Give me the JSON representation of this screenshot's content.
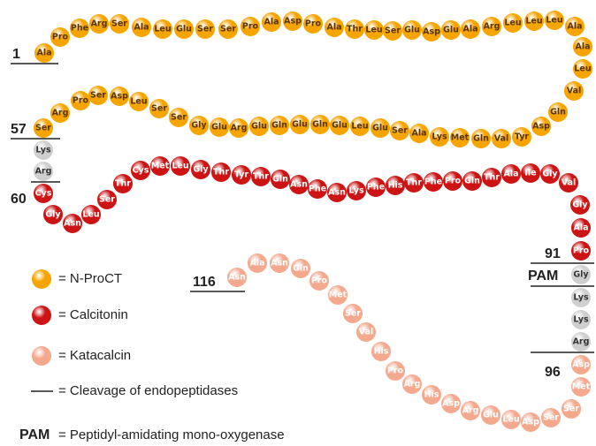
{
  "chain": [
    {
      "color": "#f5a400",
      "text_color": "#5a3300",
      "residues": [
        "Ala",
        "Pro",
        "Phe",
        "Arg",
        "Ser",
        "Ala",
        "Leu",
        "Glu",
        "Ser",
        "Ser",
        "Pro",
        "Ala",
        "Asp",
        "Pro",
        "Ala",
        "Thr",
        "Leu",
        "Ser",
        "Glu",
        "Asp",
        "Glu",
        "Ala",
        "Arg",
        "Leu",
        "Leu",
        "Leu",
        "Ala",
        "Ala",
        "Leu",
        "Val",
        "Gln",
        "Asp",
        "Tyr",
        "Val",
        "Gln",
        "Met",
        "Lys",
        "Ala",
        "Ser",
        "Glu",
        "Leu",
        "Glu",
        "Gln",
        "Glu",
        "Gln",
        "Glu",
        "Arg",
        "Glu",
        "Gly",
        "Ser",
        "Ser",
        "Leu",
        "Asp",
        "Ser",
        "Pro",
        "Arg",
        "Ser"
      ]
    },
    {
      "color": "#cfcfcf",
      "text_color": "#333333",
      "residues": [
        "Lys",
        "Arg"
      ]
    },
    {
      "color": "#cc1414",
      "text_color": "#ffffff",
      "residues": [
        "Cys",
        "Gly",
        "Asn",
        "Leu",
        "Ser",
        "Thr",
        "Cys",
        "Met",
        "Leu",
        "Gly",
        "Thr",
        "Tyr",
        "Thr",
        "Gln",
        "Asn",
        "Phe",
        "Asn",
        "Lys",
        "Phe",
        "His",
        "Thr",
        "Phe",
        "Pro",
        "Gln",
        "Thr",
        "Ala",
        "Ile",
        "Gly",
        "Val",
        "Gly",
        "Ala",
        "Pro"
      ]
    },
    {
      "color": "#cfcfcf",
      "text_color": "#333333",
      "residues": [
        "Gly",
        "Lys",
        "Lys",
        "Arg"
      ]
    },
    {
      "color": "#f4a98e",
      "text_color": "#ffffff",
      "residues": [
        "Asp",
        "Met",
        "Ser",
        "Ser",
        "Asp",
        "Leu",
        "Glu",
        "Arg",
        "Asp",
        "His",
        "Arg",
        "Pro",
        "His",
        "Val",
        "Ser",
        "Met",
        "Pro",
        "Gln",
        "Asn",
        "Ala",
        "Asn"
      ]
    }
  ],
  "markers": [
    {
      "label": "1"
    },
    {
      "label": "57"
    },
    {
      "label": "60"
    },
    {
      "label": "91"
    },
    {
      "label": "PAM"
    },
    {
      "label": "96"
    },
    {
      "label": "116"
    }
  ],
  "legend": [
    {
      "label": "= N-ProCT",
      "color": "#f5a400"
    },
    {
      "label": "= Calcitonin",
      "color": "#cc1414"
    },
    {
      "label": "= Katacalcin",
      "color": "#f4a98e"
    },
    {
      "label": "= Cleavage of endopeptidases"
    },
    {
      "label": "= Peptidyl-amidating mono-oxygenase",
      "key": "PAM"
    }
  ]
}
